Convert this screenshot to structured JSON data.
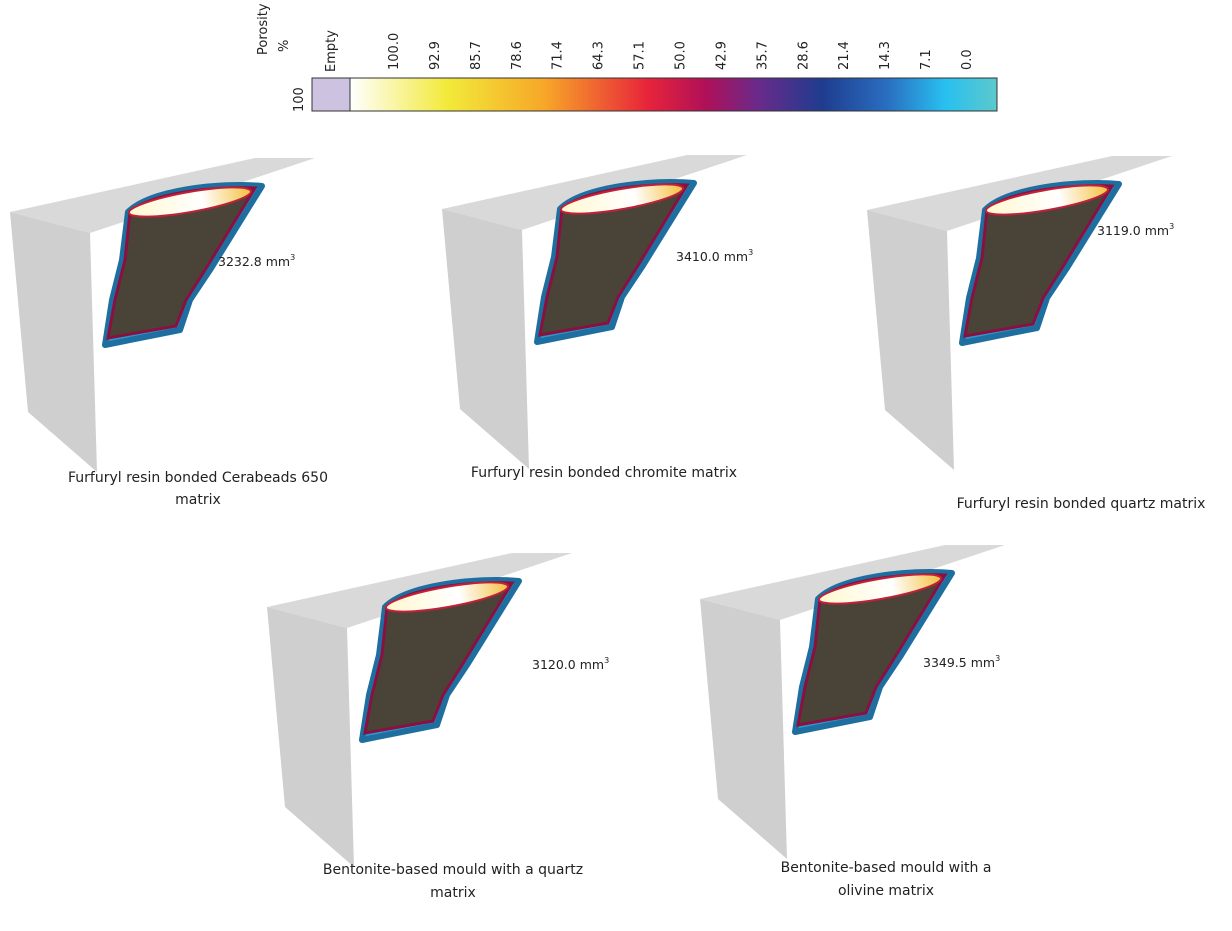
{
  "legend": {
    "title": [
      "Porosity",
      "%"
    ],
    "max_label": "100",
    "empty_label": "Empty",
    "ticks": [
      "100.0",
      "92.9",
      "85.7",
      "78.6",
      "71.4",
      "64.3",
      "57.1",
      "50.0",
      "42.9",
      "35.7",
      "28.6",
      "21.4",
      "14.3",
      "7.1",
      "0.0"
    ]
  },
  "panels": [
    {
      "volume": "3232.8",
      "unit": "mm",
      "exponent": "3",
      "caption": [
        "Furfuryl resin bonded Cerabeads 650",
        "matrix"
      ]
    },
    {
      "volume": "3410.0",
      "unit": "mm",
      "exponent": "3",
      "caption": [
        "Furfuryl resin bonded chromite matrix"
      ]
    },
    {
      "volume": "3119.0",
      "unit": "mm",
      "exponent": "3",
      "caption": [
        "Furfuryl resin bonded quartz matrix"
      ]
    },
    {
      "volume": "3120.0",
      "unit": "mm",
      "exponent": "3",
      "caption": [
        "Bentonite-based mould with a quartz",
        "matrix"
      ]
    },
    {
      "volume": "3349.5",
      "unit": "mm",
      "exponent": "3",
      "caption": [
        "Bentonite-based mould with a",
        "olivine matrix"
      ]
    }
  ]
}
